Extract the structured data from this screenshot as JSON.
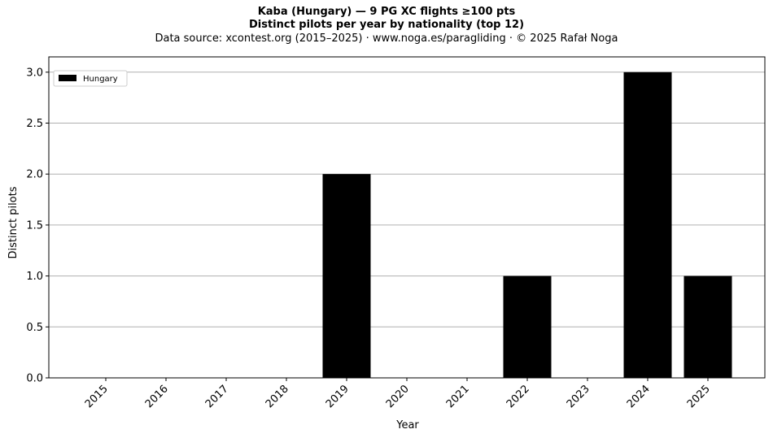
{
  "title_line1": "Kaba (Hungary)  —  9 PG XC flights ≥100 pts",
  "title_line2": "Distinct pilots per year by nationality (top 12)",
  "subtitle": "Data source: xcontest.org (2015–2025)  ·  www.noga.es/paragliding  ·  © 2025 Rafał Noga",
  "chart_data": {
    "type": "bar",
    "categories": [
      "2015",
      "2016",
      "2017",
      "2018",
      "2019",
      "2020",
      "2021",
      "2022",
      "2023",
      "2024",
      "2025"
    ],
    "series": [
      {
        "name": "Hungary",
        "values": [
          0,
          0,
          0,
          0,
          2,
          0,
          0,
          1,
          0,
          3,
          1
        ],
        "color": "#000000"
      }
    ],
    "xlabel": "Year",
    "ylabel": "Distinct pilots",
    "ylim": [
      0,
      3.15
    ],
    "yticks": [
      "0.0",
      "0.5",
      "1.0",
      "1.5",
      "2.0",
      "2.5",
      "3.0"
    ],
    "grid": "horizontal",
    "legend_position": "top-left"
  }
}
